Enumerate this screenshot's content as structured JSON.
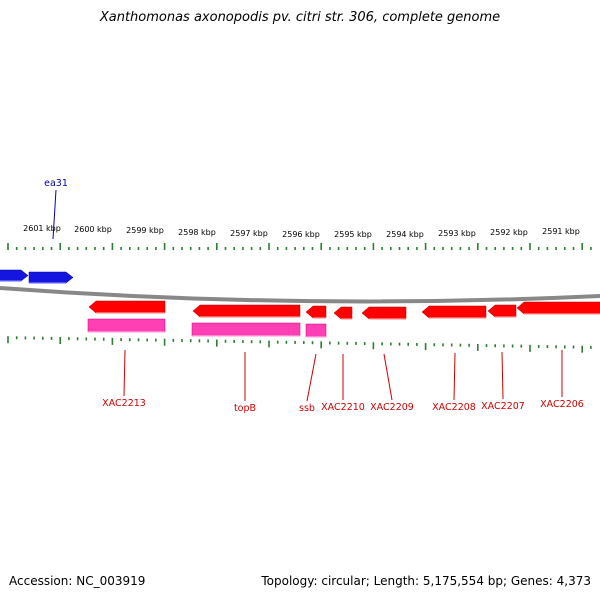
{
  "title": "Xanthomonas axonopodis pv. citri str. 306, complete genome",
  "accession_text": "Accession: NC_003919",
  "topology_text": "Topology: circular; Length: 5,175,554 bp; Genes: 4,373",
  "colors": {
    "backbone": "#888888",
    "ticks": "#2e7d32",
    "forward_gene": "#1515e0",
    "reverse_gene": "#ff0000",
    "rna_feature": "#ff3fb3",
    "forward_label": "#0000b3",
    "reverse_label": "#cc0000"
  },
  "scale": {
    "unit": "kbp",
    "labels": [
      "2601 kbp",
      "2600 kbp",
      "2599 kbp",
      "2598 kbp",
      "2597 kbp",
      "2596 kbp",
      "2595 kbp",
      "2594 kbp",
      "2593 kbp",
      "2592 kbp",
      "2591 kbp"
    ]
  },
  "forward_genes": [
    {
      "label": "ea31"
    },
    {
      "label": ""
    }
  ],
  "reverse_genes": [
    {
      "label": "XAC2213"
    },
    {
      "label": "topB"
    },
    {
      "label": "ssb"
    },
    {
      "label": "XAC2210"
    },
    {
      "label": "XAC2209"
    },
    {
      "label": "XAC2208"
    },
    {
      "label": "XAC2207"
    },
    {
      "label": "XAC2206"
    }
  ]
}
